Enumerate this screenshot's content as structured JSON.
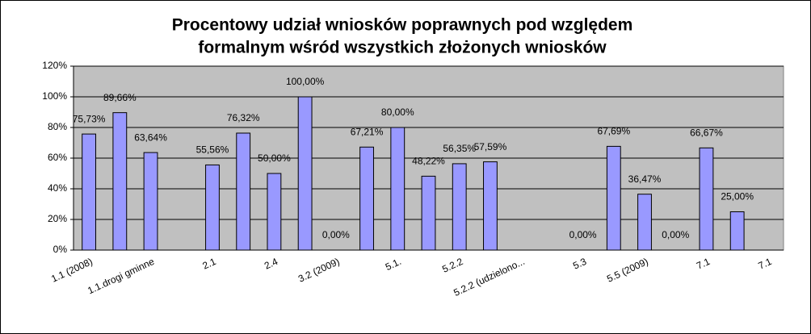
{
  "chart_data": {
    "type": "bar",
    "title": [
      "Procentowy udział wniosków poprawnych pod względem",
      "formalnym wśród wszystkich złożonych wniosków"
    ],
    "categories": [
      "1.1 (2008)",
      null,
      "1.1.drogi gminne",
      null,
      "2.1",
      null,
      "2.4",
      null,
      "3.2 (2009)",
      null,
      "5.1.",
      null,
      "5.2.2",
      null,
      "5.2.2 (udzielono...",
      null,
      "5.3",
      null,
      "5.5 (2009)",
      null,
      "7.1",
      null,
      "7.1"
    ],
    "values": [
      75.73,
      89.66,
      63.64,
      null,
      55.56,
      76.32,
      50.0,
      100.0,
      0.0,
      67.21,
      80.0,
      48.22,
      56.35,
      57.59,
      null,
      null,
      0.0,
      67.69,
      36.47,
      0.0,
      66.67,
      25.0,
      null
    ],
    "value_labels": [
      "75,73%",
      "89,66%",
      "63,64%",
      null,
      "55,56%",
      "76,32%",
      "50,00%",
      "100,00%",
      "0,00%",
      "67,21%",
      "80,00%",
      "48,22%",
      "56,35%",
      "57,59%",
      null,
      null,
      "0,00%",
      "67,69%",
      "36,47%",
      "0,00%",
      "66,67%",
      "25,00%",
      null
    ],
    "color": "#9999ff",
    "ylim": [
      0,
      120
    ],
    "yticks": [
      {
        "value": 0,
        "label": "0%"
      },
      {
        "value": 20,
        "label": "20%"
      },
      {
        "value": 40,
        "label": "40%"
      },
      {
        "value": 60,
        "label": "60%"
      },
      {
        "value": 80,
        "label": "80%"
      },
      {
        "value": 100,
        "label": "100%"
      },
      {
        "value": 120,
        "label": "120%"
      }
    ],
    "grid": true
  }
}
